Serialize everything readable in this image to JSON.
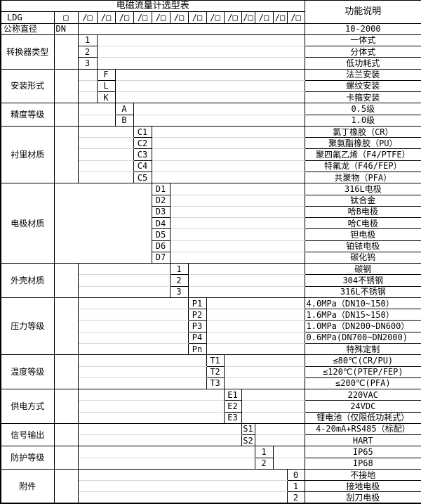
{
  "table": {
    "title": "电磁流量计选型表",
    "desc_header": "功能说明",
    "model_code": "LDG",
    "first_slot": "□",
    "slot": "/□",
    "slot_count": 13,
    "dn_row": {
      "label": "公称直径",
      "code": "DN",
      "desc": "10-2000"
    },
    "groups": [
      {
        "label": "转换器类型",
        "column": 0,
        "options": [
          {
            "code": "1",
            "desc": "一体式"
          },
          {
            "code": "2",
            "desc": "分体式"
          },
          {
            "code": "3",
            "desc": "低功耗式"
          }
        ]
      },
      {
        "label": "安装形式",
        "column": 1,
        "options": [
          {
            "code": "F",
            "desc": "法兰安装"
          },
          {
            "code": "L",
            "desc": "螺纹安装"
          },
          {
            "code": "K",
            "desc": "卡箍安装"
          }
        ]
      },
      {
        "label": "精度等级",
        "column": 2,
        "options": [
          {
            "code": "A",
            "desc": "0.5级"
          },
          {
            "code": "B",
            "desc": "1.0级"
          }
        ]
      },
      {
        "label": "衬里材质",
        "column": 3,
        "options": [
          {
            "code": "C1",
            "desc": "氯丁橡胶（CR）"
          },
          {
            "code": "C2",
            "desc": "聚氨酯橡胶（PU）"
          },
          {
            "code": "C3",
            "desc": "聚四氟乙烯（F4/PTFE）"
          },
          {
            "code": "C4",
            "desc": "特氟龙（F46/FEP）"
          },
          {
            "code": "C5",
            "desc": "共聚物（PFA）"
          }
        ]
      },
      {
        "label": "电极材质",
        "column": 4,
        "plain_left": true,
        "options": [
          {
            "code": "D1",
            "desc": "316L电极"
          },
          {
            "code": "D2",
            "desc": "钛合金"
          },
          {
            "code": "D3",
            "desc": "哈B电极"
          },
          {
            "code": "D4",
            "desc": "哈C电极"
          },
          {
            "code": "D5",
            "desc": "钽电极"
          },
          {
            "code": "D6",
            "desc": "铂铱电极"
          },
          {
            "code": "D7",
            "desc": "碳化钨"
          }
        ]
      },
      {
        "label": "外壳材质",
        "column": 5,
        "options": [
          {
            "code": "1",
            "desc": "碳钢"
          },
          {
            "code": "2",
            "desc": "304不锈钢"
          },
          {
            "code": "3",
            "desc": "316L不锈钢"
          }
        ]
      },
      {
        "label": "压力等级",
        "column": 6,
        "options": [
          {
            "code": "P1",
            "desc": "4.0MPa（DN10~150）",
            "align": "left"
          },
          {
            "code": "P2",
            "desc": "1.6MPa（DN15~150）",
            "align": "left"
          },
          {
            "code": "P3",
            "desc": "1.0MPa（DN200~DN600）",
            "align": "left"
          },
          {
            "code": "P4",
            "desc": "0.6MPa(DN700~DN2000)",
            "align": "left"
          },
          {
            "code": "Pn",
            "desc": "特殊定制"
          }
        ]
      },
      {
        "label": "温度等级",
        "column": 7,
        "options": [
          {
            "code": "T1",
            "desc": "≤80℃(CR/PU)"
          },
          {
            "code": "T2",
            "desc": "≤120℃(PTEP/FEP)"
          },
          {
            "code": "T3",
            "desc": "≤200℃(PFA)"
          }
        ]
      },
      {
        "label": "供电方式",
        "column": 8,
        "options": [
          {
            "code": "E1",
            "desc": "220VAC"
          },
          {
            "code": "E2",
            "desc": "24VDC"
          },
          {
            "code": "E3",
            "desc": "锂电池（仅限低功耗式）"
          }
        ]
      },
      {
        "label": "信号输出",
        "column": 9,
        "options": [
          {
            "code": "S1",
            "desc": "4-20mA+RS485（标配）"
          },
          {
            "code": "S2",
            "desc": "HART"
          }
        ]
      },
      {
        "label": "防护等级",
        "column": 10,
        "options": [
          {
            "code": "1",
            "desc": "IP65"
          },
          {
            "code": "2",
            "desc": "IP68"
          }
        ]
      },
      {
        "label": "附件",
        "column": 12,
        "options": [
          {
            "code": "0",
            "desc": "不接地"
          },
          {
            "code": "1",
            "desc": "接地电极"
          },
          {
            "code": "2",
            "desc": "刮刀电极"
          }
        ]
      }
    ]
  },
  "colors": {
    "border": "#000000",
    "gridline": "#d6d6d6",
    "background": "#ffffff",
    "text": "#000000"
  }
}
